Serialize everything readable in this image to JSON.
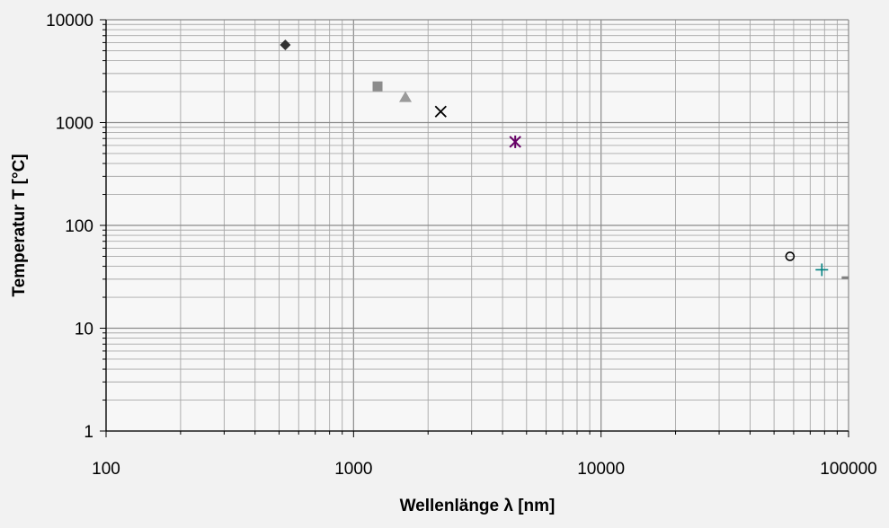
{
  "chart_data": {
    "type": "scatter",
    "xlabel": "Wellenlänge λ [nm]",
    "ylabel": "Temperatur T [°C]",
    "xscale": "log",
    "yscale": "log",
    "xlim": [
      100,
      100000
    ],
    "ylim": [
      1,
      10000
    ],
    "grid": "major and minor",
    "legend": "none",
    "xticks": [
      "100",
      "1000",
      "10000",
      "100000"
    ],
    "yticks": [
      "1",
      "10",
      "100",
      "1000",
      "10000"
    ],
    "points": [
      {
        "x": 530,
        "y": 5700,
        "marker": "diamond",
        "color": "#333333"
      },
      {
        "x": 1250,
        "y": 2250,
        "marker": "square",
        "color": "#8c8c8c"
      },
      {
        "x": 1620,
        "y": 1750,
        "marker": "triangle",
        "color": "#9a9a9a"
      },
      {
        "x": 2250,
        "y": 1280,
        "marker": "x",
        "color": "#000000"
      },
      {
        "x": 4500,
        "y": 650,
        "marker": "star",
        "color": "#660066"
      },
      {
        "x": 58000,
        "y": 50,
        "marker": "circle",
        "color": "#000000"
      },
      {
        "x": 78000,
        "y": 37,
        "marker": "plus",
        "color": "#008080"
      },
      {
        "x": 97000,
        "y": 31,
        "marker": "dash",
        "color": "#808080"
      }
    ]
  }
}
